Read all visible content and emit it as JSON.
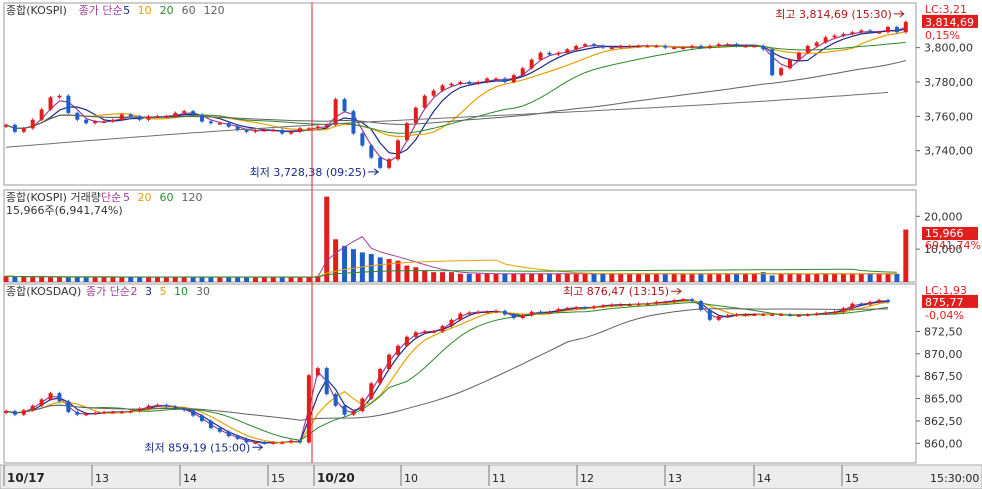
{
  "chart_data": [
    {
      "type": "candlestick",
      "title": "종합(KOSPI)",
      "legend": [
        {
          "label": "종가 단순",
          "color": "#a0409c"
        },
        {
          "label": "5",
          "color": "#1a2a8a"
        },
        {
          "label": "10",
          "color": "#e8a000"
        },
        {
          "label": "20",
          "color": "#2a8a2a"
        },
        {
          "label": "60",
          "color": "#606060"
        },
        {
          "label": "120",
          "color": "#606060"
        }
      ],
      "y_ticks": [
        "3,740,00",
        "3,760,00",
        "3,780,00",
        "3,800,00"
      ],
      "ylim": [
        3720,
        3826
      ],
      "last_value": "3,814,69",
      "change_pct": "0,15%",
      "limit_label": "LC:3,21",
      "high_annotation": "최고 3,814,69 (15:30)",
      "low_annotation": "최저 3,728,38 (09:25)",
      "colors": {
        "up": "#e01e1e",
        "down": "#1e5ec8"
      },
      "values": [
        3755,
        3751,
        3753,
        3758,
        3764,
        3771,
        3772,
        3762,
        3758,
        3756,
        3757,
        3757,
        3758,
        3761,
        3760,
        3758,
        3760,
        3760,
        3760,
        3762,
        3763,
        3761,
        3757,
        3756,
        3756,
        3754,
        3752,
        3751,
        3752,
        3752,
        3752,
        3750,
        3751,
        3753,
        3753,
        3754,
        3755,
        3770,
        3763,
        3750,
        3743,
        3736,
        3730,
        3735,
        3746,
        3756,
        3765,
        3772,
        3775,
        3778,
        3779,
        3780,
        3779,
        3780,
        3782,
        3782,
        3780,
        3784,
        3788,
        3793,
        3797,
        3796,
        3797,
        3799,
        3801,
        3802,
        3801,
        3800,
        3800,
        3801,
        3801,
        3801,
        3801,
        3801,
        3800,
        3800,
        3800,
        3801,
        3800,
        3801,
        3802,
        3802,
        3801,
        3801,
        3801,
        3799,
        3784,
        3788,
        3793,
        3797,
        3801,
        3803,
        3806,
        3807,
        3808,
        3809,
        3810,
        3809,
        3809,
        3812,
        3809,
        3815
      ]
    },
    {
      "type": "bar",
      "title": "종합(KOSPI) 거래량",
      "legend": [
        {
          "label": "단순",
          "color": "#a0409c"
        },
        {
          "label": "5",
          "color": "#a0409c"
        },
        {
          "label": "20",
          "color": "#e8a000"
        },
        {
          "label": "60",
          "color": "#2a8a2a"
        },
        {
          "label": "120",
          "color": "#606060"
        }
      ],
      "subtitle": "15,966주(6,941,74%)",
      "y_ticks": [
        "10,000",
        "20,000"
      ],
      "ylim": [
        0,
        28000
      ],
      "last_value": "15,966",
      "last_pct": "6941,74%",
      "values": [
        1800,
        1600,
        1600,
        1500,
        1500,
        1500,
        1500,
        1500,
        1500,
        1500,
        1500,
        1500,
        1500,
        1500,
        1500,
        1500,
        1500,
        1500,
        1500,
        1500,
        1500,
        1500,
        1500,
        1500,
        1500,
        1500,
        1500,
        1500,
        1500,
        1500,
        1500,
        1500,
        1500,
        1500,
        1500,
        1800,
        26000,
        13000,
        11000,
        10000,
        9000,
        8500,
        7500,
        7000,
        6500,
        5000,
        4500,
        3500,
        3000,
        3000,
        3000,
        2500,
        2500,
        2500,
        2500,
        2500,
        2500,
        2500,
        2500,
        2500,
        2500,
        2500,
        2500,
        2500,
        2500,
        2500,
        2500,
        2500,
        2500,
        2500,
        2500,
        2500,
        2500,
        2500,
        2500,
        2500,
        2500,
        2500,
        2500,
        2500,
        2500,
        2500,
        2500,
        2500,
        2500,
        3000,
        2000,
        2500,
        2500,
        2500,
        2500,
        2500,
        2500,
        2500,
        2500,
        2500,
        2500,
        2500,
        2500,
        2500,
        2500,
        15966
      ]
    },
    {
      "type": "candlestick",
      "title": "종합(KOSDAQ)",
      "legend": [
        {
          "label": "종가 단순",
          "color": "#a0409c"
        },
        {
          "label": "2",
          "color": "#a0409c"
        },
        {
          "label": "3",
          "color": "#1a2a8a"
        },
        {
          "label": "5",
          "color": "#e8a000"
        },
        {
          "label": "10",
          "color": "#2a8a2a"
        },
        {
          "label": "30",
          "color": "#606060"
        }
      ],
      "y_ticks": [
        "860,00",
        "862,50",
        "865,00",
        "867,50",
        "870,00",
        "872,50"
      ],
      "ylim": [
        857.8,
        877.8
      ],
      "last_value": "875,77",
      "change_pct": "-0,04%",
      "limit_label": "LC:1,93",
      "high_annotation": "최고 876,47 (13:15)",
      "low_annotation": "최저 859,19 (15:00)",
      "values": [
        863.6,
        863.2,
        863.7,
        864.2,
        864.9,
        865.6,
        864.7,
        863.5,
        863.2,
        863.3,
        863.4,
        863.5,
        863.5,
        863.5,
        863.6,
        863.9,
        864.2,
        864.3,
        864.1,
        863.9,
        863.7,
        863.1,
        862.5,
        861.7,
        861.3,
        860.8,
        860.5,
        860.1,
        860.1,
        860.0,
        860.1,
        860.1,
        860.3,
        860.1,
        867.6,
        868.4,
        865.5,
        864.2,
        863.2,
        863.6,
        865.0,
        866.7,
        868.3,
        869.9,
        870.9,
        871.9,
        872.4,
        872.5,
        872.5,
        873.1,
        873.8,
        874.5,
        874.6,
        874.7,
        874.7,
        874.8,
        874.4,
        874.0,
        874.3,
        874.7,
        874.6,
        874.7,
        875.0,
        875.1,
        875.2,
        875.1,
        875.3,
        875.4,
        875.5,
        875.5,
        875.5,
        875.6,
        875.6,
        875.8,
        875.8,
        876.0,
        876.1,
        875.9,
        874.9,
        873.8,
        874.2,
        874.3,
        874.4,
        874.4,
        874.4,
        874.4,
        874.4,
        874.4,
        874.3,
        874.3,
        874.4,
        874.5,
        874.6,
        874.7,
        875.1,
        875.6,
        875.5,
        875.8,
        876.0,
        875.8
      ]
    }
  ],
  "x_axis": {
    "ticks": [
      "10/17",
      "13",
      "14",
      "15",
      "10/20",
      "10",
      "11",
      "12",
      "13",
      "14",
      "15"
    ],
    "clock": "15:30:00"
  }
}
